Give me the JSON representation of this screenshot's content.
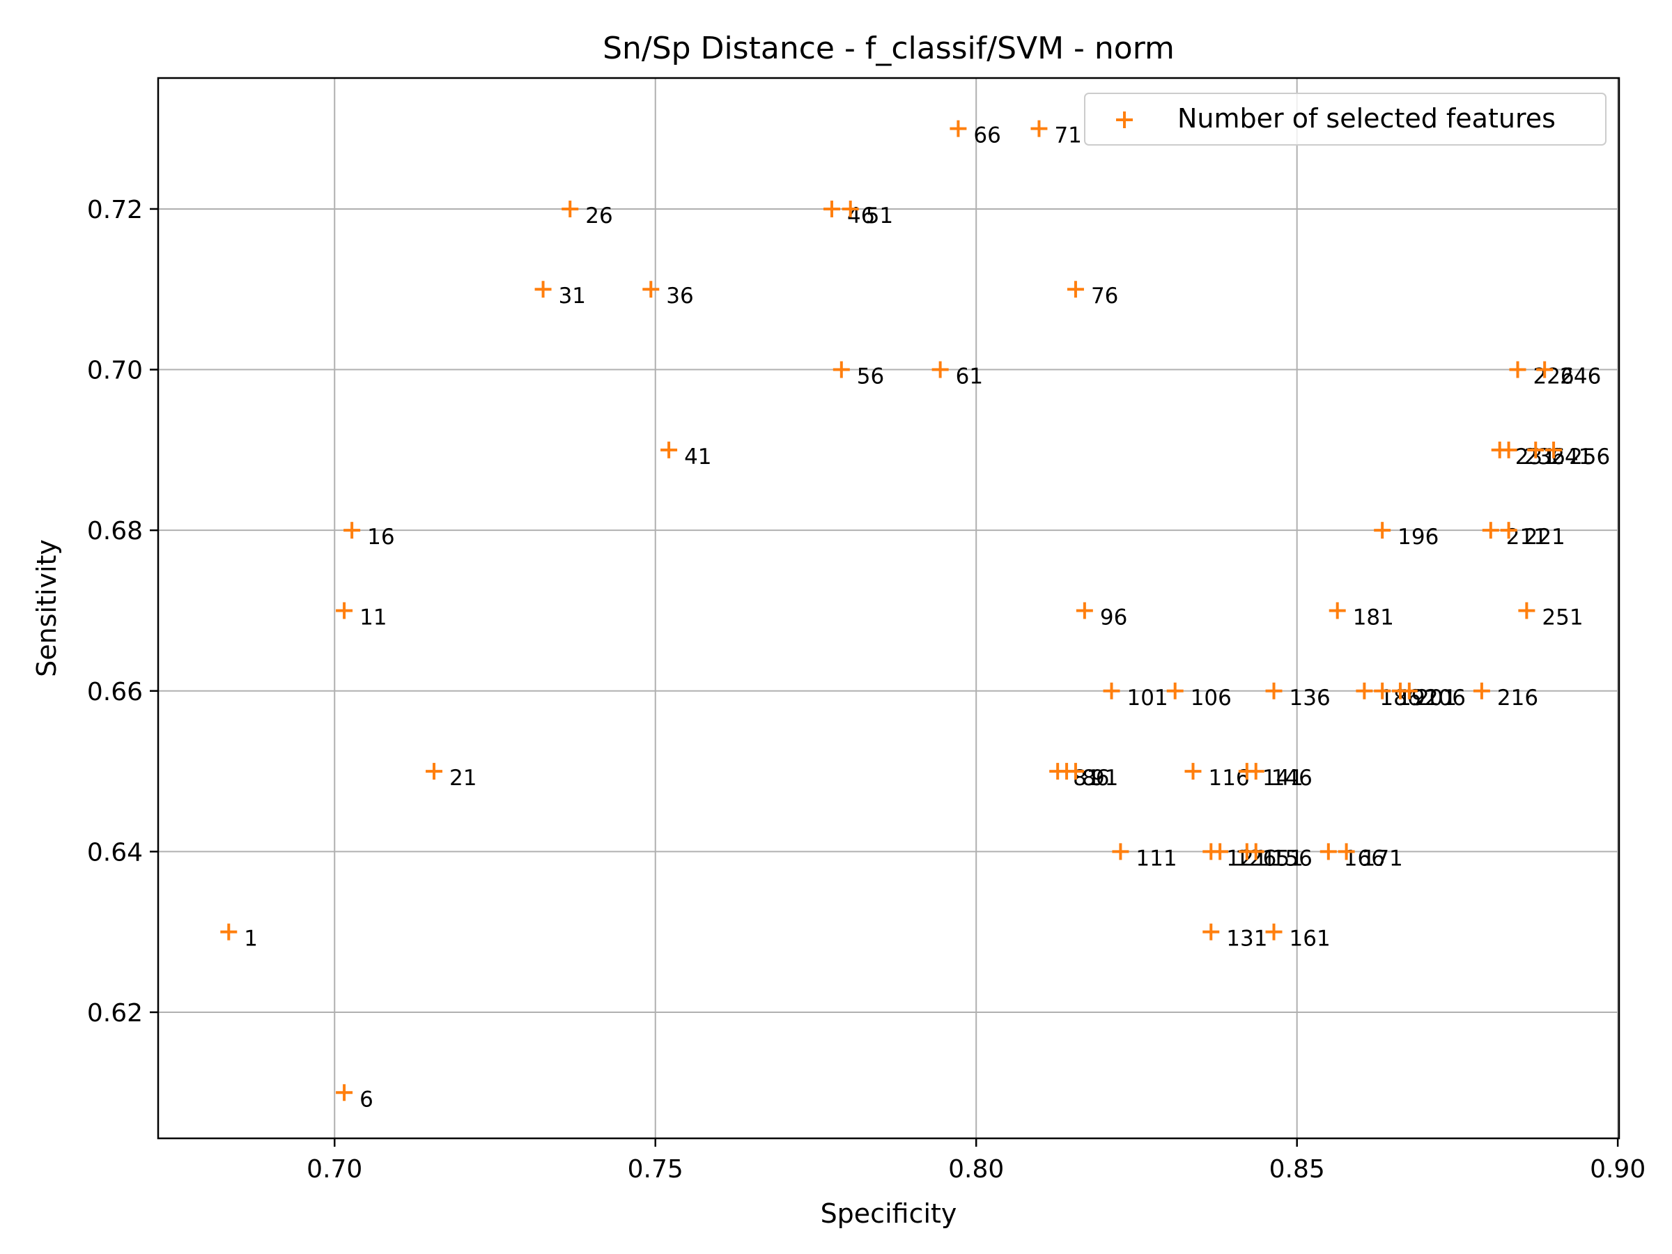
{
  "chart_data": {
    "type": "scatter",
    "title": "Sn/Sp Distance - f_classif/SVM - norm",
    "xlabel": "Specificity",
    "ylabel": "Sensitivity",
    "xlim": [
      0.6725,
      0.9002
    ],
    "ylim": [
      0.6043,
      0.7363
    ],
    "xticks": [
      0.7,
      0.75,
      0.8,
      0.85,
      0.9
    ],
    "xtick_labels": [
      "0.70",
      "0.75",
      "0.80",
      "0.85",
      "0.90"
    ],
    "yticks": [
      0.62,
      0.64,
      0.66,
      0.68,
      0.7,
      0.72
    ],
    "ytick_labels": [
      "0.62",
      "0.64",
      "0.66",
      "0.68",
      "0.70",
      "0.72"
    ],
    "grid": true,
    "legend": {
      "position": "top-right",
      "entries": [
        "Number of selected features"
      ]
    },
    "marker_color": "#ff7f0e",
    "series": [
      {
        "name": "Number of selected features",
        "points": [
          {
            "x": 0.6835,
            "y": 0.63,
            "label": "1"
          },
          {
            "x": 0.7015,
            "y": 0.61,
            "label": "6"
          },
          {
            "x": 0.7015,
            "y": 0.67,
            "label": "11"
          },
          {
            "x": 0.7027,
            "y": 0.68,
            "label": "16"
          },
          {
            "x": 0.7155,
            "y": 0.65,
            "label": "21"
          },
          {
            "x": 0.7367,
            "y": 0.72,
            "label": "26"
          },
          {
            "x": 0.7325,
            "y": 0.71,
            "label": "31"
          },
          {
            "x": 0.7493,
            "y": 0.71,
            "label": "36"
          },
          {
            "x": 0.7521,
            "y": 0.69,
            "label": "41"
          },
          {
            "x": 0.7775,
            "y": 0.72,
            "label": "46"
          },
          {
            "x": 0.7804,
            "y": 0.72,
            "label": "51"
          },
          {
            "x": 0.779,
            "y": 0.7,
            "label": "56"
          },
          {
            "x": 0.7944,
            "y": 0.7,
            "label": "61"
          },
          {
            "x": 0.7972,
            "y": 0.73,
            "label": "66"
          },
          {
            "x": 0.8098,
            "y": 0.73,
            "label": "71"
          },
          {
            "x": 0.8155,
            "y": 0.71,
            "label": "76"
          },
          {
            "x": 0.8127,
            "y": 0.65,
            "label": "81"
          },
          {
            "x": 0.8141,
            "y": 0.65,
            "label": "86"
          },
          {
            "x": 0.8155,
            "y": 0.65,
            "label": "91"
          },
          {
            "x": 0.8169,
            "y": 0.67,
            "label": "96"
          },
          {
            "x": 0.8211,
            "y": 0.66,
            "label": "101"
          },
          {
            "x": 0.8225,
            "y": 0.64,
            "label": "111"
          },
          {
            "x": 0.831,
            "y": 0.66,
            "label": "106"
          },
          {
            "x": 0.8338,
            "y": 0.65,
            "label": "116"
          },
          {
            "x": 0.8366,
            "y": 0.63,
            "label": "131"
          },
          {
            "x": 0.8366,
            "y": 0.64,
            "label": "121"
          },
          {
            "x": 0.838,
            "y": 0.64,
            "label": "126"
          },
          {
            "x": 0.8422,
            "y": 0.65,
            "label": "141"
          },
          {
            "x": 0.8436,
            "y": 0.65,
            "label": "146"
          },
          {
            "x": 0.8422,
            "y": 0.64,
            "label": "151"
          },
          {
            "x": 0.8436,
            "y": 0.64,
            "label": "156"
          },
          {
            "x": 0.8464,
            "y": 0.66,
            "label": "136"
          },
          {
            "x": 0.8464,
            "y": 0.63,
            "label": "161"
          },
          {
            "x": 0.8549,
            "y": 0.64,
            "label": "166"
          },
          {
            "x": 0.8563,
            "y": 0.67,
            "label": "181"
          },
          {
            "x": 0.8577,
            "y": 0.64,
            "label": "171"
          },
          {
            "x": 0.8605,
            "y": 0.66,
            "label": "186"
          },
          {
            "x": 0.8633,
            "y": 0.68,
            "label": "196"
          },
          {
            "x": 0.8633,
            "y": 0.66,
            "label": "191"
          },
          {
            "x": 0.8661,
            "y": 0.66,
            "label": "201"
          },
          {
            "x": 0.8675,
            "y": 0.66,
            "label": "206"
          },
          {
            "x": 0.8788,
            "y": 0.66,
            "label": "216"
          },
          {
            "x": 0.8802,
            "y": 0.68,
            "label": "211"
          },
          {
            "x": 0.883,
            "y": 0.68,
            "label": "221"
          },
          {
            "x": 0.8844,
            "y": 0.7,
            "label": "226"
          },
          {
            "x": 0.8886,
            "y": 0.7,
            "label": "246"
          },
          {
            "x": 0.8816,
            "y": 0.69,
            "label": "231"
          },
          {
            "x": 0.883,
            "y": 0.69,
            "label": "236"
          },
          {
            "x": 0.8872,
            "y": 0.69,
            "label": "241"
          },
          {
            "x": 0.89,
            "y": 0.69,
            "label": "256"
          },
          {
            "x": 0.8858,
            "y": 0.67,
            "label": "251"
          }
        ]
      }
    ]
  }
}
